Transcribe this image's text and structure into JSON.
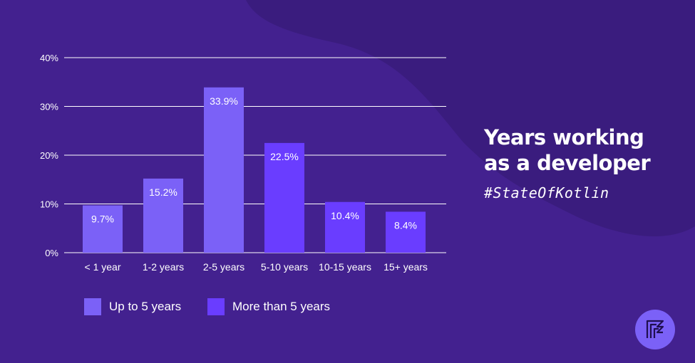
{
  "title_lines": [
    "Years working",
    "as a developer"
  ],
  "hashtag": "#StateOfKotlin",
  "colors": {
    "background": "#43218f",
    "background_blob": "#3a1c7e",
    "up_to_5": "#7b61f7",
    "more_than_5": "#6a3dff",
    "grid": "#ffffff",
    "text": "#ffffff",
    "logo_circle": "#7b61f7"
  },
  "legend": [
    {
      "label": "Up to 5 years",
      "color_key": "up_to_5"
    },
    {
      "label": "More than 5 years",
      "color_key": "more_than_5"
    }
  ],
  "icons": {
    "logo": "kotlin-logo-icon"
  },
  "chart_data": {
    "type": "bar",
    "categories": [
      "< 1 year",
      "1-2 years",
      "2-5 years",
      "5-10 years",
      "10-15 years",
      "15+ years"
    ],
    "values": [
      9.7,
      15.2,
      33.9,
      22.5,
      10.4,
      8.4
    ],
    "value_labels": [
      "9.7%",
      "15.2%",
      "33.9%",
      "22.5%",
      "10.4%",
      "8.4%"
    ],
    "groups": [
      "Up to 5 years",
      "Up to 5 years",
      "Up to 5 years",
      "More than 5 years",
      "More than 5 years",
      "More than 5 years"
    ],
    "yticks": [
      0,
      10,
      20,
      30,
      40
    ],
    "ytick_labels": [
      "0%",
      "10%",
      "20%",
      "30%",
      "40%"
    ],
    "ylim": [
      0,
      40
    ],
    "grid": true,
    "legend_position": "bottom"
  }
}
